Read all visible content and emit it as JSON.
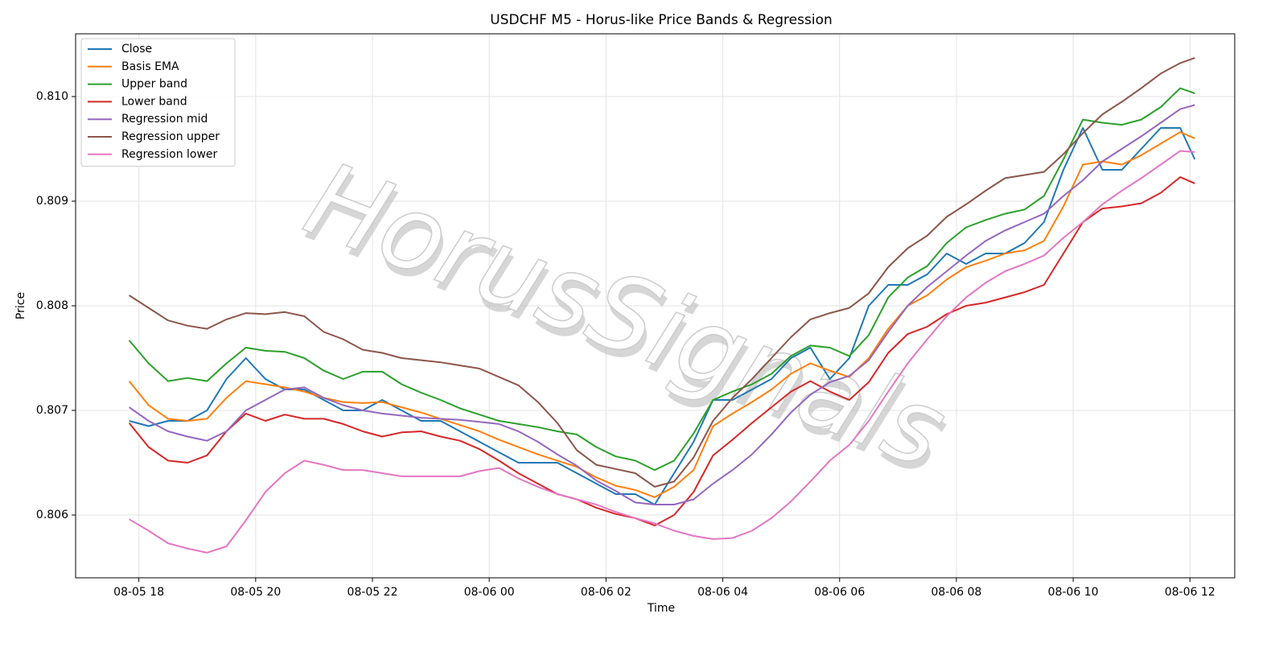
{
  "chart_data": {
    "type": "line",
    "title": "USDCHF M5 - Horus-like Price Bands & Regression",
    "xlabel": "Time",
    "ylabel": "Price",
    "watermark": "HorusSignals",
    "grid": true,
    "legend": "upper left",
    "x": [
      "08-05 17:50",
      "08-05 18:10",
      "08-05 18:30",
      "08-05 18:50",
      "08-05 19:10",
      "08-05 19:30",
      "08-05 19:50",
      "08-05 20:10",
      "08-05 20:30",
      "08-05 20:50",
      "08-05 21:10",
      "08-05 21:30",
      "08-05 21:50",
      "08-05 22:10",
      "08-05 22:30",
      "08-05 22:50",
      "08-05 23:10",
      "08-05 23:30",
      "08-05 23:50",
      "08-06 00:10",
      "08-06 00:30",
      "08-06 00:50",
      "08-06 01:10",
      "08-06 01:30",
      "08-06 01:50",
      "08-06 02:10",
      "08-06 02:30",
      "08-06 02:50",
      "08-06 03:10",
      "08-06 03:30",
      "08-06 03:50",
      "08-06 04:10",
      "08-06 04:30",
      "08-06 04:50",
      "08-06 05:10",
      "08-06 05:30",
      "08-06 05:50",
      "08-06 06:10",
      "08-06 06:30",
      "08-06 06:50",
      "08-06 07:10",
      "08-06 07:30",
      "08-06 07:50",
      "08-06 08:10",
      "08-06 08:30",
      "08-06 08:50",
      "08-06 09:10",
      "08-06 09:30",
      "08-06 09:50",
      "08-06 10:10",
      "08-06 10:30",
      "08-06 10:50",
      "08-06 11:10",
      "08-06 11:30",
      "08-06 11:50",
      "08-06 12:05"
    ],
    "series": [
      {
        "name": "Close",
        "color": "#1f77b4",
        "values": [
          0.8069,
          0.80685,
          0.8069,
          0.8069,
          0.807,
          0.8073,
          0.8075,
          0.8073,
          0.8072,
          0.8072,
          0.8071,
          0.807,
          0.807,
          0.8071,
          0.807,
          0.8069,
          0.8069,
          0.8068,
          0.8067,
          0.8066,
          0.8065,
          0.8065,
          0.8065,
          0.8064,
          0.8063,
          0.8062,
          0.8062,
          0.8061,
          0.8064,
          0.8067,
          0.8071,
          0.8071,
          0.8072,
          0.8073,
          0.8075,
          0.8076,
          0.8073,
          0.8075,
          0.808,
          0.8082,
          0.8082,
          0.8083,
          0.8085,
          0.8084,
          0.8085,
          0.8085,
          0.8086,
          0.8088,
          0.8093,
          0.8097,
          0.8093,
          0.8093,
          0.8095,
          0.8097,
          0.8097,
          0.8094
        ]
      },
      {
        "name": "Basis EMA",
        "color": "#ff7f0e",
        "values": [
          0.80728,
          0.80705,
          0.80692,
          0.8069,
          0.80692,
          0.80712,
          0.80728,
          0.80725,
          0.80722,
          0.80718,
          0.80712,
          0.80708,
          0.80707,
          0.80708,
          0.80703,
          0.80698,
          0.80692,
          0.80686,
          0.8068,
          0.80672,
          0.80665,
          0.80658,
          0.80652,
          0.80646,
          0.80636,
          0.80628,
          0.80624,
          0.80617,
          0.80627,
          0.80643,
          0.80685,
          0.80697,
          0.80708,
          0.8072,
          0.80735,
          0.80745,
          0.80738,
          0.80732,
          0.8075,
          0.80778,
          0.808,
          0.8081,
          0.80825,
          0.80837,
          0.80843,
          0.8085,
          0.80853,
          0.80862,
          0.80895,
          0.80935,
          0.80938,
          0.80935,
          0.80944,
          0.80955,
          0.80966,
          0.8096
        ]
      },
      {
        "name": "Upper band",
        "color": "#2ca02c",
        "values": [
          0.80767,
          0.80745,
          0.80728,
          0.80731,
          0.80728,
          0.80745,
          0.8076,
          0.80757,
          0.80756,
          0.8075,
          0.80738,
          0.8073,
          0.80737,
          0.80737,
          0.80725,
          0.80717,
          0.8071,
          0.80702,
          0.80696,
          0.8069,
          0.80687,
          0.80684,
          0.8068,
          0.80677,
          0.80665,
          0.80656,
          0.80652,
          0.80643,
          0.80652,
          0.80678,
          0.8071,
          0.80718,
          0.80725,
          0.80735,
          0.80752,
          0.80762,
          0.8076,
          0.80752,
          0.80772,
          0.80808,
          0.80827,
          0.80838,
          0.8086,
          0.80875,
          0.80882,
          0.80888,
          0.80892,
          0.80905,
          0.8094,
          0.80978,
          0.80975,
          0.80973,
          0.80978,
          0.8099,
          0.81008,
          0.81003
        ]
      },
      {
        "name": "Lower band",
        "color": "#d62728",
        "values": [
          0.80688,
          0.80665,
          0.80652,
          0.8065,
          0.80657,
          0.8068,
          0.80697,
          0.8069,
          0.80696,
          0.80692,
          0.80692,
          0.80687,
          0.8068,
          0.80675,
          0.80679,
          0.8068,
          0.80675,
          0.80671,
          0.80663,
          0.80652,
          0.8064,
          0.8063,
          0.8062,
          0.80615,
          0.80607,
          0.80601,
          0.80597,
          0.8059,
          0.806,
          0.80622,
          0.80657,
          0.80672,
          0.80688,
          0.80703,
          0.80718,
          0.80728,
          0.80718,
          0.8071,
          0.80727,
          0.80755,
          0.80773,
          0.8078,
          0.80792,
          0.808,
          0.80803,
          0.80808,
          0.80813,
          0.8082,
          0.8085,
          0.8088,
          0.80893,
          0.80895,
          0.80898,
          0.80908,
          0.80923,
          0.80917
        ]
      },
      {
        "name": "Regression mid",
        "color": "#9467bd",
        "values": [
          0.80703,
          0.8069,
          0.8068,
          0.80675,
          0.80671,
          0.8068,
          0.807,
          0.8071,
          0.8072,
          0.80722,
          0.80712,
          0.80705,
          0.807,
          0.80697,
          0.80695,
          0.80693,
          0.80692,
          0.80691,
          0.80689,
          0.80687,
          0.8068,
          0.8067,
          0.80658,
          0.80647,
          0.80633,
          0.80623,
          0.80612,
          0.8061,
          0.8061,
          0.80615,
          0.8063,
          0.80643,
          0.80658,
          0.80677,
          0.80698,
          0.80715,
          0.80727,
          0.80733,
          0.80748,
          0.80775,
          0.808,
          0.80818,
          0.80833,
          0.80848,
          0.80862,
          0.80872,
          0.8088,
          0.80888,
          0.80905,
          0.8092,
          0.80938,
          0.8095,
          0.80962,
          0.80975,
          0.80988,
          0.80992
        ]
      },
      {
        "name": "Regression upper",
        "color": "#8c564b",
        "values": [
          0.8081,
          0.80798,
          0.80786,
          0.80781,
          0.80778,
          0.80787,
          0.80793,
          0.80792,
          0.80794,
          0.8079,
          0.80775,
          0.80768,
          0.80758,
          0.80755,
          0.8075,
          0.80748,
          0.80746,
          0.80743,
          0.8074,
          0.80732,
          0.80724,
          0.80708,
          0.80688,
          0.80662,
          0.80648,
          0.80644,
          0.8064,
          0.80627,
          0.80632,
          0.80655,
          0.8069,
          0.80712,
          0.8073,
          0.8075,
          0.8077,
          0.80787,
          0.80793,
          0.80798,
          0.80812,
          0.80837,
          0.80855,
          0.80867,
          0.80885,
          0.80897,
          0.8091,
          0.80922,
          0.80925,
          0.80928,
          0.80945,
          0.80965,
          0.80983,
          0.80995,
          0.81008,
          0.81022,
          0.81032,
          0.81037
        ]
      },
      {
        "name": "Regression lower",
        "color": "#e377c2",
        "values": [
          0.80596,
          0.80585,
          0.80573,
          0.80568,
          0.80564,
          0.8057,
          0.80595,
          0.80622,
          0.8064,
          0.80652,
          0.80648,
          0.80643,
          0.80643,
          0.8064,
          0.80637,
          0.80637,
          0.80637,
          0.80637,
          0.80642,
          0.80645,
          0.80635,
          0.80627,
          0.8062,
          0.80615,
          0.8061,
          0.80603,
          0.80597,
          0.80592,
          0.80585,
          0.8058,
          0.80577,
          0.80578,
          0.80585,
          0.80597,
          0.80613,
          0.80632,
          0.80652,
          0.80667,
          0.8069,
          0.80718,
          0.80745,
          0.80768,
          0.8079,
          0.80808,
          0.80822,
          0.80833,
          0.8084,
          0.80848,
          0.80865,
          0.8088,
          0.80897,
          0.8091,
          0.80922,
          0.80935,
          0.80948,
          0.80947
        ]
      }
    ],
    "xlim": [
      "08-05 16:55",
      "08-06 12:46"
    ],
    "xticks": [
      {
        "value": "08-05 18:00",
        "label": "08-05 18"
      },
      {
        "value": "08-05 20:00",
        "label": "08-05 20"
      },
      {
        "value": "08-05 22:00",
        "label": "08-05 22"
      },
      {
        "value": "08-06 00:00",
        "label": "08-06 00"
      },
      {
        "value": "08-06 02:00",
        "label": "08-06 02"
      },
      {
        "value": "08-06 04:00",
        "label": "08-06 04"
      },
      {
        "value": "08-06 06:00",
        "label": "08-06 06"
      },
      {
        "value": "08-06 08:00",
        "label": "08-06 08"
      },
      {
        "value": "08-06 10:00",
        "label": "08-06 10"
      },
      {
        "value": "08-06 12:00",
        "label": "08-06 12"
      }
    ],
    "ylim": [
      0.8054,
      0.8106
    ],
    "yticks": [
      0.806,
      0.807,
      0.808,
      0.809,
      {
        "value": 0.81,
        "label": "0.810"
      }
    ]
  }
}
